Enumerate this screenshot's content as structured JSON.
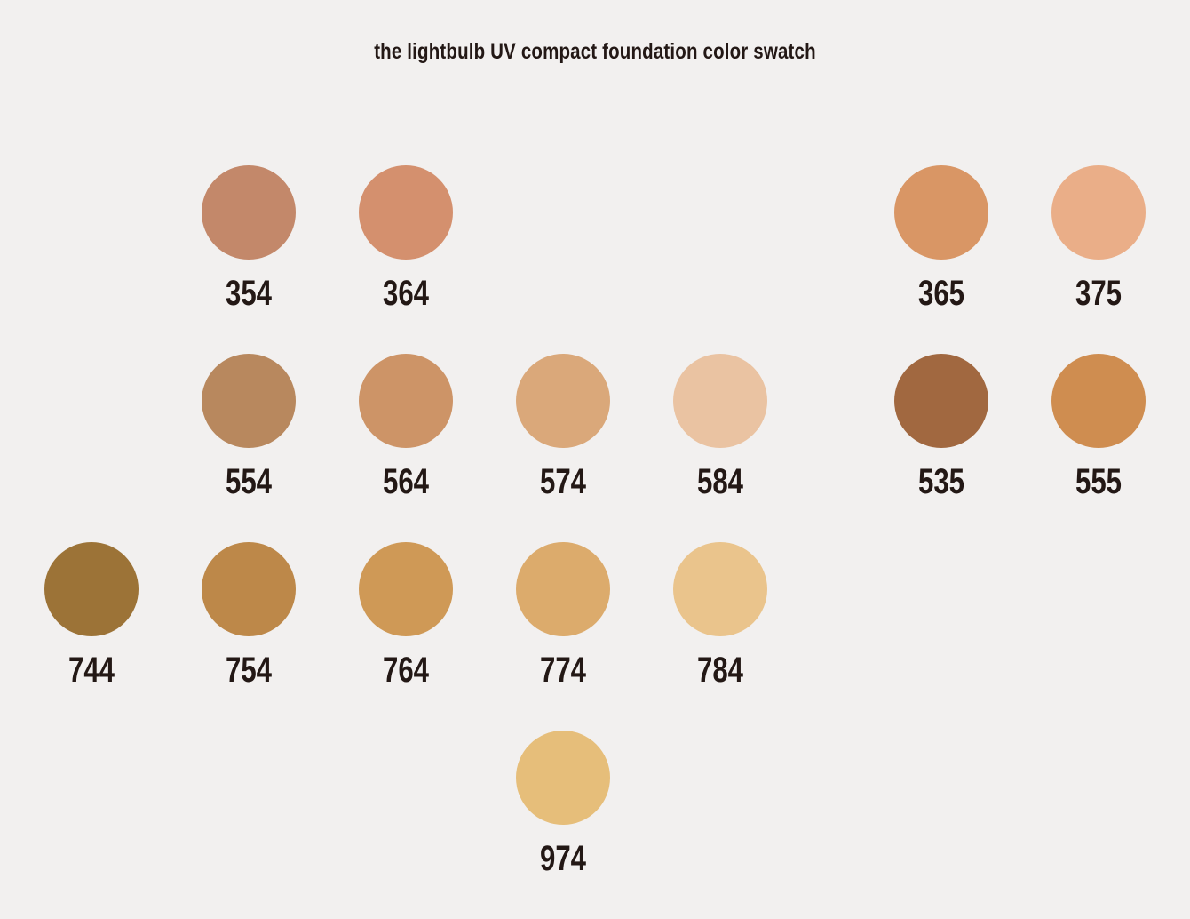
{
  "title": "the lightbulb UV compact foundation color swatch",
  "swatches": [
    {
      "code": "354",
      "color": "#c3886a"
    },
    {
      "code": "364",
      "color": "#d4906e"
    },
    {
      "code": "365",
      "color": "#d99665"
    },
    {
      "code": "375",
      "color": "#eaae88"
    },
    {
      "code": "554",
      "color": "#b8885e"
    },
    {
      "code": "564",
      "color": "#cd9467"
    },
    {
      "code": "574",
      "color": "#daa87a"
    },
    {
      "code": "584",
      "color": "#eac3a2"
    },
    {
      "code": "535",
      "color": "#a16840"
    },
    {
      "code": "555",
      "color": "#cf8d50"
    },
    {
      "code": "744",
      "color": "#9c7337"
    },
    {
      "code": "754",
      "color": "#bd8849"
    },
    {
      "code": "764",
      "color": "#cf9956"
    },
    {
      "code": "774",
      "color": "#dcab6c"
    },
    {
      "code": "784",
      "color": "#eac48c"
    },
    {
      "code": "974",
      "color": "#e6be7a"
    }
  ]
}
